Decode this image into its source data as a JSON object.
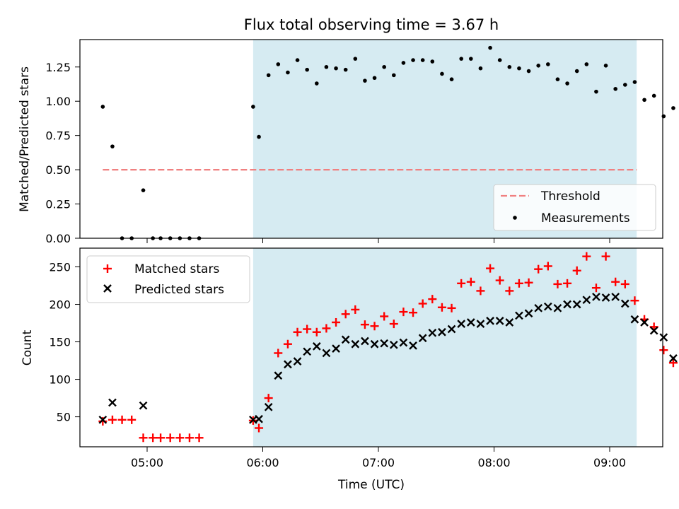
{
  "chart_data": [
    {
      "type": "scatter",
      "title": "Flux total observing time = 3.67 h",
      "xlabel": "",
      "ylabel": "Matched/Predicted stars",
      "ylim": [
        0,
        1.45
      ],
      "yticks": [
        0.0,
        0.25,
        0.5,
        0.75,
        1.0,
        1.25
      ],
      "ytick_labels": [
        "0.00",
        "0.25",
        "0.50",
        "0.75",
        "1.00",
        "1.25"
      ],
      "xticks": [
        "05:00",
        "06:00",
        "07:00",
        "08:00",
        "09:00"
      ],
      "shaded_region": {
        "from": "05:55",
        "to": "09:14",
        "color": "#add8e6"
      },
      "legend_position": "lower-right",
      "grid": false,
      "series": [
        {
          "name": "Threshold",
          "kind": "dashed-line",
          "color": "#f08080",
          "points": [
            [
              "04:37",
              0.5
            ],
            [
              "09:14",
              0.5
            ]
          ]
        },
        {
          "name": "Measurements",
          "kind": "dot",
          "color": "#000000",
          "points": [
            [
              "04:37",
              0.96
            ],
            [
              "04:42",
              0.67
            ],
            [
              "04:47",
              0.0
            ],
            [
              "04:52",
              0.0
            ],
            [
              "04:58",
              0.35
            ],
            [
              "05:03",
              0.0
            ],
            [
              "05:07",
              0.0
            ],
            [
              "05:12",
              0.0
            ],
            [
              "05:17",
              0.0
            ],
            [
              "05:22",
              0.0
            ],
            [
              "05:27",
              0.0
            ],
            [
              "05:55",
              0.96
            ],
            [
              "05:58",
              0.74
            ],
            [
              "06:03",
              1.19
            ],
            [
              "06:08",
              1.27
            ],
            [
              "06:13",
              1.21
            ],
            [
              "06:18",
              1.3
            ],
            [
              "06:23",
              1.23
            ],
            [
              "06:28",
              1.13
            ],
            [
              "06:33",
              1.25
            ],
            [
              "06:38",
              1.24
            ],
            [
              "06:43",
              1.23
            ],
            [
              "06:48",
              1.31
            ],
            [
              "06:53",
              1.15
            ],
            [
              "06:58",
              1.17
            ],
            [
              "07:03",
              1.25
            ],
            [
              "07:08",
              1.19
            ],
            [
              "07:13",
              1.28
            ],
            [
              "07:18",
              1.3
            ],
            [
              "07:23",
              1.3
            ],
            [
              "07:28",
              1.29
            ],
            [
              "07:33",
              1.2
            ],
            [
              "07:38",
              1.16
            ],
            [
              "07:43",
              1.31
            ],
            [
              "07:48",
              1.31
            ],
            [
              "07:53",
              1.24
            ],
            [
              "07:58",
              1.39
            ],
            [
              "08:03",
              1.3
            ],
            [
              "08:08",
              1.25
            ],
            [
              "08:13",
              1.24
            ],
            [
              "08:18",
              1.22
            ],
            [
              "08:23",
              1.26
            ],
            [
              "08:28",
              1.27
            ],
            [
              "08:33",
              1.16
            ],
            [
              "08:38",
              1.13
            ],
            [
              "08:43",
              1.22
            ],
            [
              "08:48",
              1.27
            ],
            [
              "08:53",
              1.07
            ],
            [
              "08:58",
              1.26
            ],
            [
              "09:03",
              1.09
            ],
            [
              "09:08",
              1.12
            ],
            [
              "09:13",
              1.14
            ],
            [
              "09:18",
              1.01
            ],
            [
              "09:23",
              1.04
            ],
            [
              "09:28",
              0.89
            ],
            [
              "09:33",
              0.95
            ]
          ]
        }
      ]
    },
    {
      "type": "scatter",
      "title": "",
      "xlabel": "Time (UTC)",
      "ylabel": "Count",
      "ylim": [
        10,
        275
      ],
      "yticks": [
        50,
        100,
        150,
        200,
        250
      ],
      "ytick_labels": [
        "50",
        "100",
        "150",
        "200",
        "250"
      ],
      "xticks": [
        "05:00",
        "06:00",
        "07:00",
        "08:00",
        "09:00"
      ],
      "shaded_region": {
        "from": "05:55",
        "to": "09:14",
        "color": "#add8e6"
      },
      "legend_position": "upper-left",
      "grid": false,
      "series": [
        {
          "name": "Matched stars",
          "kind": "plus",
          "color": "#ff0000",
          "points": [
            [
              "04:37",
              44
            ],
            [
              "04:42",
              46
            ],
            [
              "04:47",
              46
            ],
            [
              "04:52",
              46
            ],
            [
              "04:58",
              22
            ],
            [
              "05:03",
              22
            ],
            [
              "05:07",
              22
            ],
            [
              "05:12",
              22
            ],
            [
              "05:17",
              22
            ],
            [
              "05:22",
              22
            ],
            [
              "05:27",
              22
            ],
            [
              "05:55",
              45
            ],
            [
              "05:58",
              35
            ],
            [
              "06:03",
              75
            ],
            [
              "06:08",
              135
            ],
            [
              "06:13",
              147
            ],
            [
              "06:18",
              163
            ],
            [
              "06:23",
              167
            ],
            [
              "06:28",
              163
            ],
            [
              "06:33",
              168
            ],
            [
              "06:38",
              176
            ],
            [
              "06:43",
              187
            ],
            [
              "06:48",
              193
            ],
            [
              "06:53",
              173
            ],
            [
              "06:58",
              171
            ],
            [
              "07:03",
              184
            ],
            [
              "07:08",
              174
            ],
            [
              "07:13",
              190
            ],
            [
              "07:18",
              189
            ],
            [
              "07:23",
              201
            ],
            [
              "07:28",
              207
            ],
            [
              "07:33",
              196
            ],
            [
              "07:38",
              195
            ],
            [
              "07:43",
              228
            ],
            [
              "07:48",
              230
            ],
            [
              "07:53",
              218
            ],
            [
              "07:58",
              248
            ],
            [
              "08:03",
              232
            ],
            [
              "08:08",
              218
            ],
            [
              "08:13",
              228
            ],
            [
              "08:18",
              229
            ],
            [
              "08:23",
              247
            ],
            [
              "08:28",
              251
            ],
            [
              "08:33",
              227
            ],
            [
              "08:38",
              228
            ],
            [
              "08:43",
              245
            ],
            [
              "08:48",
              264
            ],
            [
              "08:53",
              222
            ],
            [
              "08:58",
              264
            ],
            [
              "09:03",
              230
            ],
            [
              "09:08",
              227
            ],
            [
              "09:13",
              205
            ],
            [
              "09:18",
              180
            ],
            [
              "09:23",
              170
            ],
            [
              "09:28",
              139
            ],
            [
              "09:33",
              122
            ]
          ]
        },
        {
          "name": "Predicted stars",
          "kind": "cross",
          "color": "#000000",
          "points": [
            [
              "04:37",
              46
            ],
            [
              "04:42",
              69
            ],
            [
              "04:58",
              65
            ],
            [
              "05:55",
              46
            ],
            [
              "05:58",
              47
            ],
            [
              "06:03",
              63
            ],
            [
              "06:08",
              105
            ],
            [
              "06:13",
              120
            ],
            [
              "06:18",
              124
            ],
            [
              "06:23",
              137
            ],
            [
              "06:28",
              144
            ],
            [
              "06:33",
              135
            ],
            [
              "06:38",
              141
            ],
            [
              "06:43",
              153
            ],
            [
              "06:48",
              147
            ],
            [
              "06:53",
              151
            ],
            [
              "06:58",
              147
            ],
            [
              "07:03",
              148
            ],
            [
              "07:08",
              146
            ],
            [
              "07:13",
              149
            ],
            [
              "07:18",
              145
            ],
            [
              "07:23",
              155
            ],
            [
              "07:28",
              162
            ],
            [
              "07:33",
              163
            ],
            [
              "07:38",
              167
            ],
            [
              "07:43",
              174
            ],
            [
              "07:48",
              176
            ],
            [
              "07:53",
              174
            ],
            [
              "07:58",
              178
            ],
            [
              "08:03",
              178
            ],
            [
              "08:08",
              176
            ],
            [
              "08:13",
              185
            ],
            [
              "08:18",
              188
            ],
            [
              "08:23",
              195
            ],
            [
              "08:28",
              197
            ],
            [
              "08:33",
              195
            ],
            [
              "08:38",
              200
            ],
            [
              "08:43",
              200
            ],
            [
              "08:48",
              206
            ],
            [
              "08:53",
              210
            ],
            [
              "08:58",
              209
            ],
            [
              "09:03",
              210
            ],
            [
              "09:08",
              201
            ],
            [
              "09:13",
              180
            ],
            [
              "09:18",
              176
            ],
            [
              "09:23",
              165
            ],
            [
              "09:28",
              156
            ],
            [
              "09:33",
              128
            ]
          ]
        }
      ]
    }
  ]
}
